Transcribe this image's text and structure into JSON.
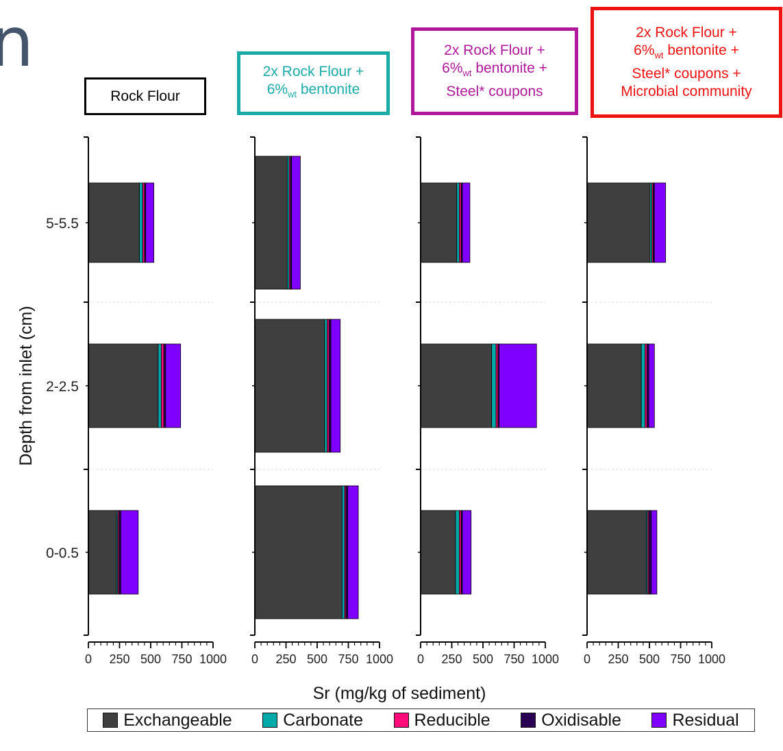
{
  "fragment": "n",
  "chart_data": {
    "type": "bar",
    "orientation": "horizontal",
    "stacked": true,
    "xlabel": "Sr (mg/kg of sediment)",
    "ylabel": "Depth from inlet (cm)",
    "xlim": [
      0,
      1000
    ],
    "xticks": [
      "0",
      "250",
      "500",
      "750",
      "1000"
    ],
    "categories": [
      "5-5.5",
      "2-2.5",
      "0-0.5"
    ],
    "fractions": [
      "Exchangeable",
      "Carbonate",
      "Reducible",
      "Oxidisable",
      "Residual"
    ],
    "colors": {
      "Exchangeable": "#3f3f3f",
      "Carbonate": "#00aaa8",
      "Reducible": "#ff0a78",
      "Oxidisable": "#2a0055",
      "Residual": "#7f00ff"
    },
    "panels": [
      {
        "title_lines": [
          "Rock Flour"
        ],
        "title_color": "#000000",
        "values": {
          "5-5.5": [
            410,
            25,
            15,
            10,
            65
          ],
          "2-2.5": [
            560,
            25,
            20,
            15,
            120
          ],
          "0-0.5": [
            225,
            10,
            10,
            15,
            140
          ]
        }
      },
      {
        "title_lines": [
          "2x Rock Flour +",
          "6%wt bentonite"
        ],
        "title_color": "#1aaaa8",
        "values": {
          "5-5.5": [
            260,
            15,
            10,
            10,
            70
          ],
          "2-2.5": [
            560,
            20,
            15,
            15,
            75
          ],
          "0-0.5": [
            700,
            20,
            10,
            15,
            85
          ]
        }
      },
      {
        "title_lines": [
          "2x Rock Flour +",
          "6%wt bentonite +",
          "Steel* coupons"
        ],
        "title_color": "#b0189c",
        "values": {
          "5-5.5": [
            290,
            20,
            15,
            10,
            60
          ],
          "2-2.5": [
            570,
            35,
            15,
            10,
            300
          ],
          "0-0.5": [
            280,
            30,
            15,
            10,
            70
          ]
        }
      },
      {
        "title_lines": [
          "2x Rock Flour +",
          "6%wt bentonite +",
          "Steel* coupons +",
          "Microbial community"
        ],
        "title_color": "#ee1111",
        "values": {
          "5-5.5": [
            505,
            15,
            10,
            10,
            90
          ],
          "2-2.5": [
            435,
            30,
            15,
            15,
            45
          ],
          "0-0.5": [
            475,
            10,
            10,
            20,
            45
          ]
        }
      }
    ]
  }
}
